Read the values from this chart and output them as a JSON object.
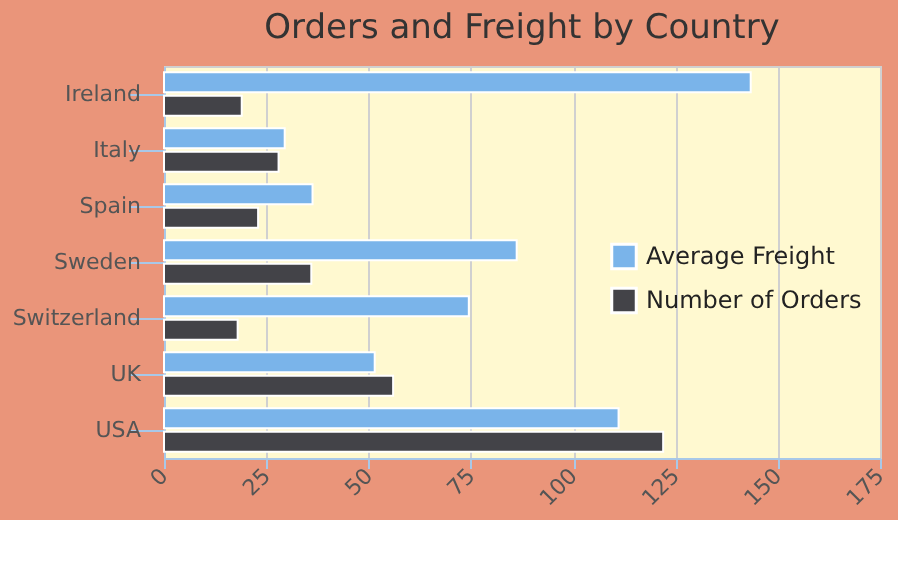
{
  "chart_data": {
    "type": "bar",
    "orientation": "horizontal",
    "title": "Orders and Freight by Country",
    "categories": [
      "Ireland",
      "Italy",
      "Spain",
      "Sweden",
      "Switzerland",
      "UK",
      "USA"
    ],
    "series": [
      {
        "name": "Average Freight",
        "color": "#7ab4ea",
        "values": [
          143.4,
          29.5,
          36.3,
          86.2,
          74.5,
          51.5,
          111.1
        ]
      },
      {
        "name": "Number of Orders",
        "color": "#434348",
        "values": [
          19,
          28,
          23,
          36,
          18,
          56,
          122
        ]
      }
    ],
    "xlim": [
      0,
      175
    ],
    "xticks": [
      0,
      25,
      50,
      75,
      100,
      125,
      150,
      175
    ],
    "grid": "x",
    "legend": "right"
  }
}
